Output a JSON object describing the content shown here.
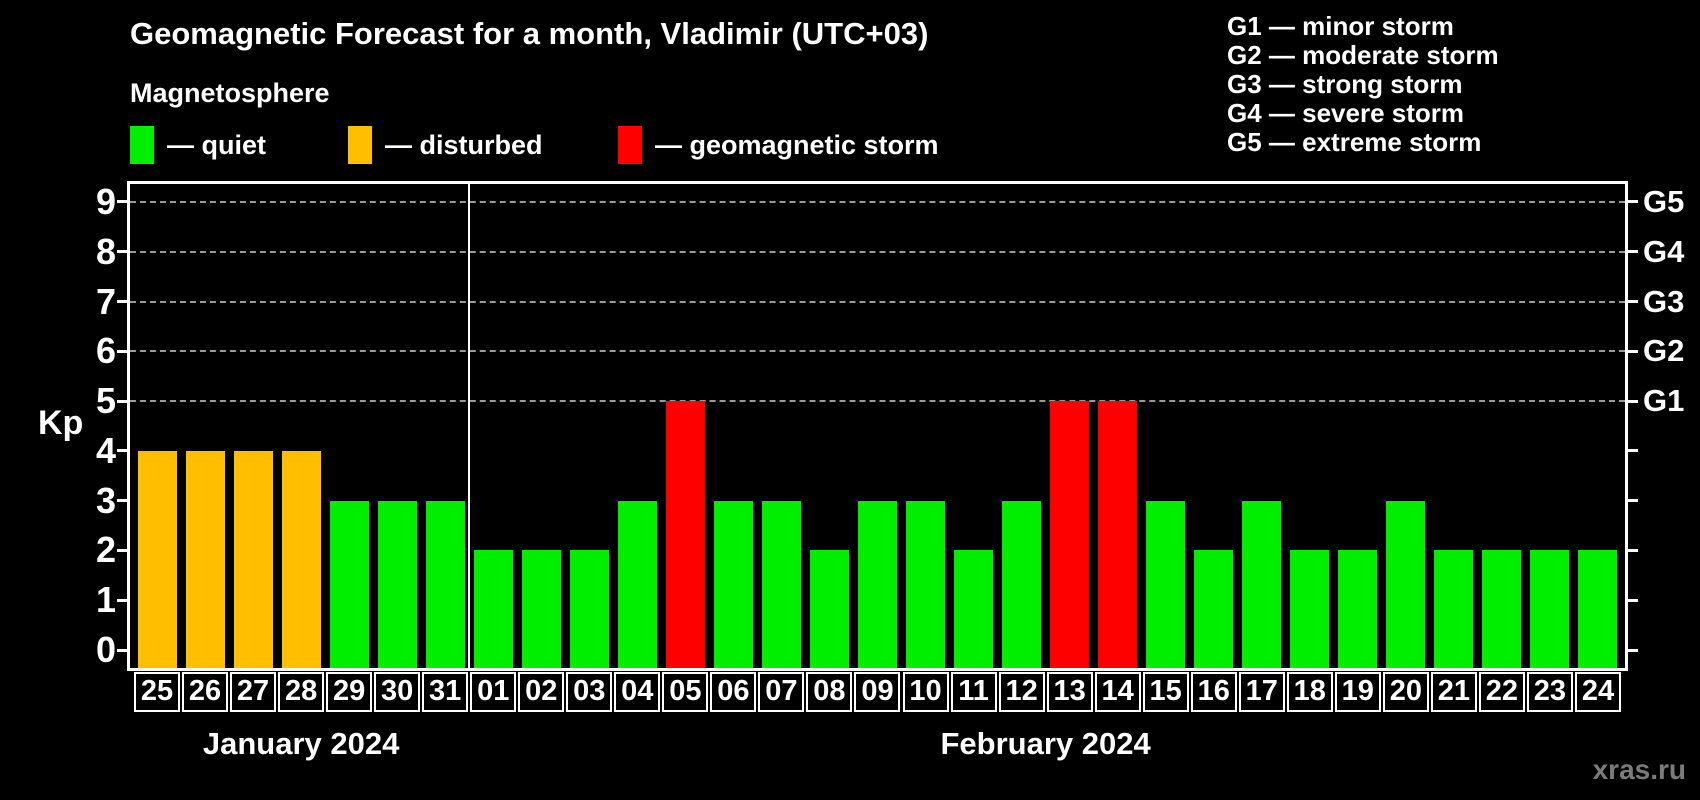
{
  "header": {
    "title": "Geomagnetic Forecast for a month, Vladimir (UTC+03)",
    "subtitle": "Magnetosphere",
    "watermark": "xras.ru"
  },
  "legend": {
    "items": [
      {
        "swatch": "quiet",
        "label": "— quiet"
      },
      {
        "swatch": "disturbed",
        "label": "— disturbed"
      },
      {
        "swatch": "storm",
        "label": "— geomagnetic storm"
      }
    ]
  },
  "storm_scale": {
    "items": [
      "G1 — minor storm",
      "G2 — moderate storm",
      "G3 — strong storm",
      "G4 — severe storm",
      "G5 — extreme storm"
    ]
  },
  "chart_data": {
    "type": "bar",
    "title": "Geomagnetic Forecast for a month, Vladimir (UTC+03)",
    "ylabel": "Kp",
    "ylim": [
      0,
      9.4
    ],
    "grid_kp": [
      5,
      6,
      7,
      8,
      9
    ],
    "yticks_left": [
      0,
      1,
      2,
      3,
      4,
      5,
      6,
      7,
      8,
      9
    ],
    "yticks_right": [
      {
        "kp": 5,
        "label": "G1"
      },
      {
        "kp": 6,
        "label": "G2"
      },
      {
        "kp": 7,
        "label": "G3"
      },
      {
        "kp": 8,
        "label": "G4"
      },
      {
        "kp": 9,
        "label": "G5"
      }
    ],
    "colors": {
      "quiet": "#00ee00",
      "disturbed": "#ffbe00",
      "storm": "#ff0000"
    },
    "months": [
      {
        "label": "January 2024",
        "days": [
          {
            "date": "25",
            "kp": 4,
            "level": "disturbed"
          },
          {
            "date": "26",
            "kp": 4,
            "level": "disturbed"
          },
          {
            "date": "27",
            "kp": 4,
            "level": "disturbed"
          },
          {
            "date": "28",
            "kp": 4,
            "level": "disturbed"
          },
          {
            "date": "29",
            "kp": 3,
            "level": "quiet"
          },
          {
            "date": "30",
            "kp": 3,
            "level": "quiet"
          },
          {
            "date": "31",
            "kp": 3,
            "level": "quiet"
          }
        ]
      },
      {
        "label": "February 2024",
        "days": [
          {
            "date": "01",
            "kp": 2,
            "level": "quiet"
          },
          {
            "date": "02",
            "kp": 2,
            "level": "quiet"
          },
          {
            "date": "03",
            "kp": 2,
            "level": "quiet"
          },
          {
            "date": "04",
            "kp": 3,
            "level": "quiet"
          },
          {
            "date": "05",
            "kp": 5,
            "level": "storm"
          },
          {
            "date": "06",
            "kp": 3,
            "level": "quiet"
          },
          {
            "date": "07",
            "kp": 3,
            "level": "quiet"
          },
          {
            "date": "08",
            "kp": 2,
            "level": "quiet"
          },
          {
            "date": "09",
            "kp": 3,
            "level": "quiet"
          },
          {
            "date": "10",
            "kp": 3,
            "level": "quiet"
          },
          {
            "date": "11",
            "kp": 2,
            "level": "quiet"
          },
          {
            "date": "12",
            "kp": 3,
            "level": "quiet"
          },
          {
            "date": "13",
            "kp": 5,
            "level": "storm"
          },
          {
            "date": "14",
            "kp": 5,
            "level": "storm"
          },
          {
            "date": "15",
            "kp": 3,
            "level": "quiet"
          },
          {
            "date": "16",
            "kp": 2,
            "level": "quiet"
          },
          {
            "date": "17",
            "kp": 3,
            "level": "quiet"
          },
          {
            "date": "18",
            "kp": 2,
            "level": "quiet"
          },
          {
            "date": "19",
            "kp": 2,
            "level": "quiet"
          },
          {
            "date": "20",
            "kp": 3,
            "level": "quiet"
          },
          {
            "date": "21",
            "kp": 2,
            "level": "quiet"
          },
          {
            "date": "22",
            "kp": 2,
            "level": "quiet"
          },
          {
            "date": "23",
            "kp": 2,
            "level": "quiet"
          },
          {
            "date": "24",
            "kp": 2,
            "level": "quiet"
          }
        ]
      }
    ]
  }
}
